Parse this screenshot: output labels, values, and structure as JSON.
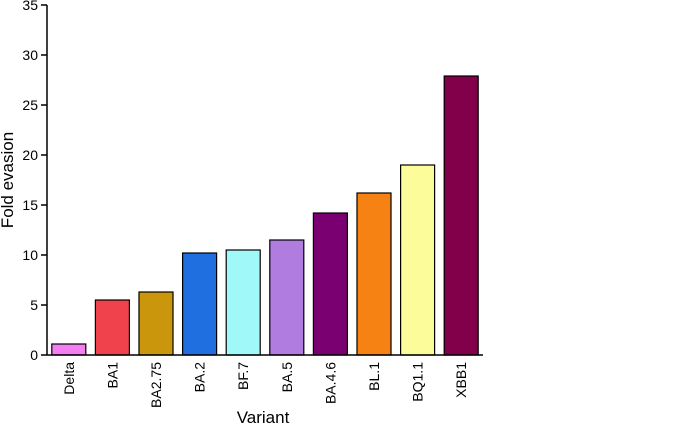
{
  "chart_data": {
    "type": "bar",
    "x_label": "Variant",
    "y_label": "Fold evasion",
    "categories": [
      "Delta",
      "BA1",
      "BA2.75",
      "BA.2",
      "BF.7",
      "BA.5",
      "BA.4.6",
      "BL.1",
      "BQ1.1",
      "XBB1"
    ],
    "values": [
      1.1,
      5.5,
      6.3,
      10.2,
      10.5,
      11.5,
      14.2,
      16.2,
      19.0,
      27.9
    ],
    "colors": [
      "#f27ef2",
      "#f0424c",
      "#c9960c",
      "#1f6fe0",
      "#a0f8f8",
      "#b07ce0",
      "#7a0072",
      "#f58212",
      "#fcfc9a",
      "#82004a"
    ],
    "ylim": [
      0,
      35
    ],
    "yticks": [
      0,
      5,
      10,
      15,
      20,
      25,
      30,
      35
    ]
  }
}
